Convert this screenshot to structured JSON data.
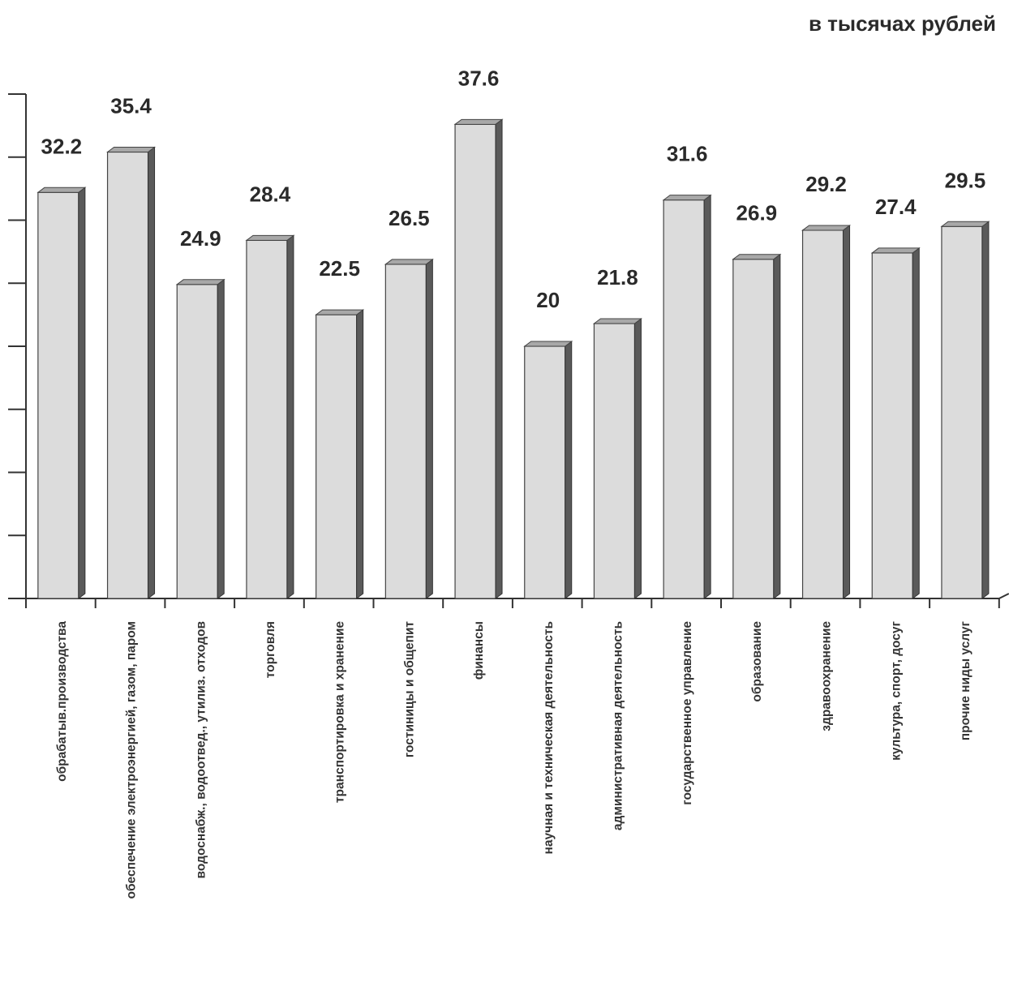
{
  "chart_data": {
    "type": "bar",
    "unit_label": "в тысячах рублей",
    "categories": [
      "обрабатыв.производства",
      "обеспечение электроэнергией, газом, паром",
      "водоснабж., водоотвед., утилиз. отходов",
      "торговля",
      "транспортировка и хранение",
      "гостиницы и общепит",
      "финансы",
      "научная и техническая деятельность",
      "административная деятельность",
      "государственное управление",
      "образование",
      "здравоохранение",
      "культура, спорт, досуг",
      "прочие ниды услуг"
    ],
    "values": [
      32.2,
      35.4,
      24.9,
      28.4,
      22.5,
      26.5,
      37.6,
      20,
      21.8,
      31.6,
      26.9,
      29.2,
      27.4,
      29.5
    ],
    "value_labels": [
      "32.2",
      "35.4",
      "24.9",
      "28.4",
      "22.5",
      "26.5",
      "37.6",
      "20",
      "21.8",
      "31.6",
      "26.9",
      "29.2",
      "27.4",
      "29.5"
    ],
    "ylim": [
      0,
      40
    ],
    "y_ticks": [
      0,
      5,
      10,
      15,
      20,
      25,
      30,
      35,
      40
    ],
    "y_tick_labels_shown": false,
    "grid": false,
    "legend": "none",
    "style": "3d",
    "colors": {
      "bar_front": "#dcdcdc",
      "bar_side": "#5a5a5a",
      "bar_top": "#a8a8a8",
      "axis": "#333333",
      "text": "#2a2a2a"
    }
  }
}
